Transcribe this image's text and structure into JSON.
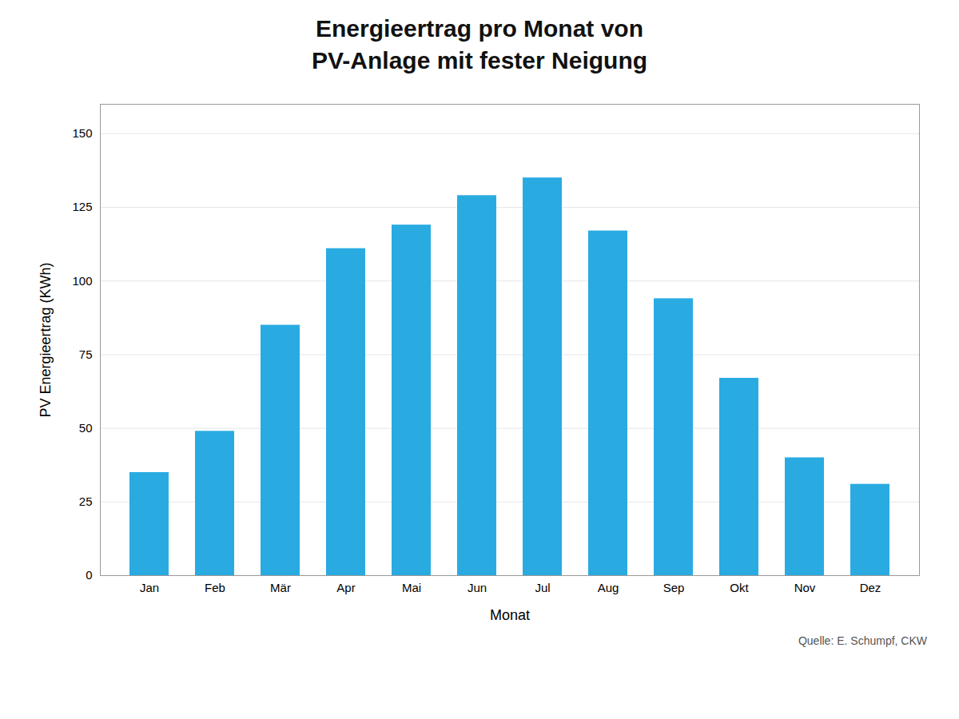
{
  "chart_data": {
    "type": "bar",
    "title": "Energieertrag pro Monat von",
    "subtitle": "PV-Anlage mit fester Neigung",
    "xlabel": "Monat",
    "ylabel": "PV Energieertrag (KWh)",
    "categories": [
      "Jan",
      "Feb",
      "Mär",
      "Apr",
      "Mai",
      "Jun",
      "Jul",
      "Aug",
      "Sep",
      "Okt",
      "Nov",
      "Dez"
    ],
    "values": [
      35,
      49,
      85,
      111,
      119,
      129,
      135,
      117,
      94,
      67,
      40,
      31
    ],
    "color": "#29ABE2",
    "ylim": [
      0,
      160
    ],
    "yticks": [
      0,
      25,
      50,
      75,
      100,
      125,
      150
    ],
    "grid": true,
    "annotations": [
      "Quelle: E. Schumpf, CKW"
    ]
  }
}
